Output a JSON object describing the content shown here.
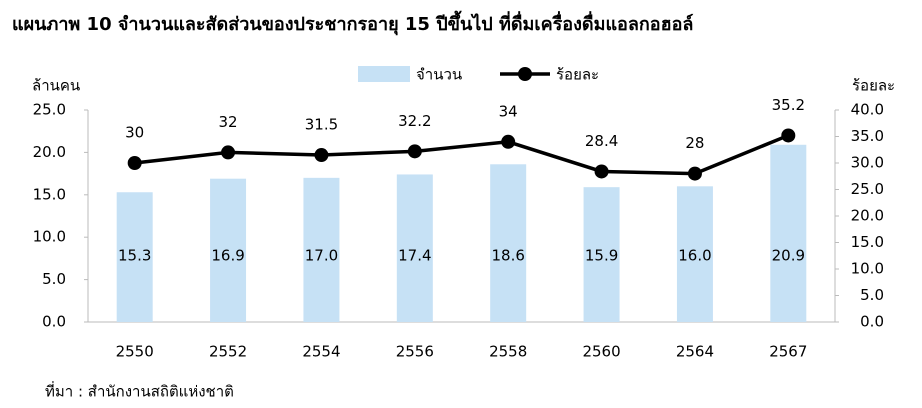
{
  "chart_data": {
    "type": "bar",
    "title": "แผนภาพ  10  จำนวนและสัดส่วนของประชากรอายุ 15 ปีขึ้นไป ที่ดื่มเครื่องดื่มแอลกอฮอล์",
    "y_label": "ล้านคน",
    "y2_label": "ร้อยละ",
    "source": "ที่มา : สำนักงานสถิติแห่งชาติ",
    "categories": [
      "2550",
      "2552",
      "2554",
      "2556",
      "2558",
      "2560",
      "2564",
      "2567"
    ],
    "series": [
      {
        "name": "จำนวน",
        "type": "bar",
        "color": "#c6e1f5",
        "values": [
          15.3,
          16.9,
          17.0,
          17.4,
          18.6,
          15.9,
          16.0,
          20.9
        ],
        "value_labels": [
          "15.3",
          "16.9",
          "17.0",
          "17.4",
          "18.6",
          "15.9",
          "16.0",
          "20.9"
        ]
      },
      {
        "name": "ร้อยละ",
        "type": "line",
        "axis": "y2",
        "color": "#000000",
        "values": [
          30,
          32,
          31.5,
          32.2,
          34,
          28.4,
          28,
          35.2
        ]
      }
    ],
    "ylim": [
      0,
      25
    ],
    "yticks": [
      {
        "value": 0,
        "label": "0.0"
      },
      {
        "value": 5,
        "label": "5.0"
      },
      {
        "value": 10,
        "label": "10.0"
      },
      {
        "value": 15,
        "label": "15.0"
      },
      {
        "value": 20,
        "label": "20.0"
      },
      {
        "value": 25,
        "label": "25.0"
      }
    ],
    "y2lim": [
      0,
      40
    ],
    "y2ticks": [
      {
        "value": 0,
        "label": "0.0"
      },
      {
        "value": 5,
        "label": "5.0"
      },
      {
        "value": 10,
        "label": "10.0"
      },
      {
        "value": 15,
        "label": "15.0"
      },
      {
        "value": 20,
        "label": "20.0"
      },
      {
        "value": 25,
        "label": "25.0"
      },
      {
        "value": 30,
        "label": "30.0"
      },
      {
        "value": 35,
        "label": "35.0"
      },
      {
        "value": 40,
        "label": "40.0"
      }
    ],
    "grid": false,
    "legend": "top"
  }
}
